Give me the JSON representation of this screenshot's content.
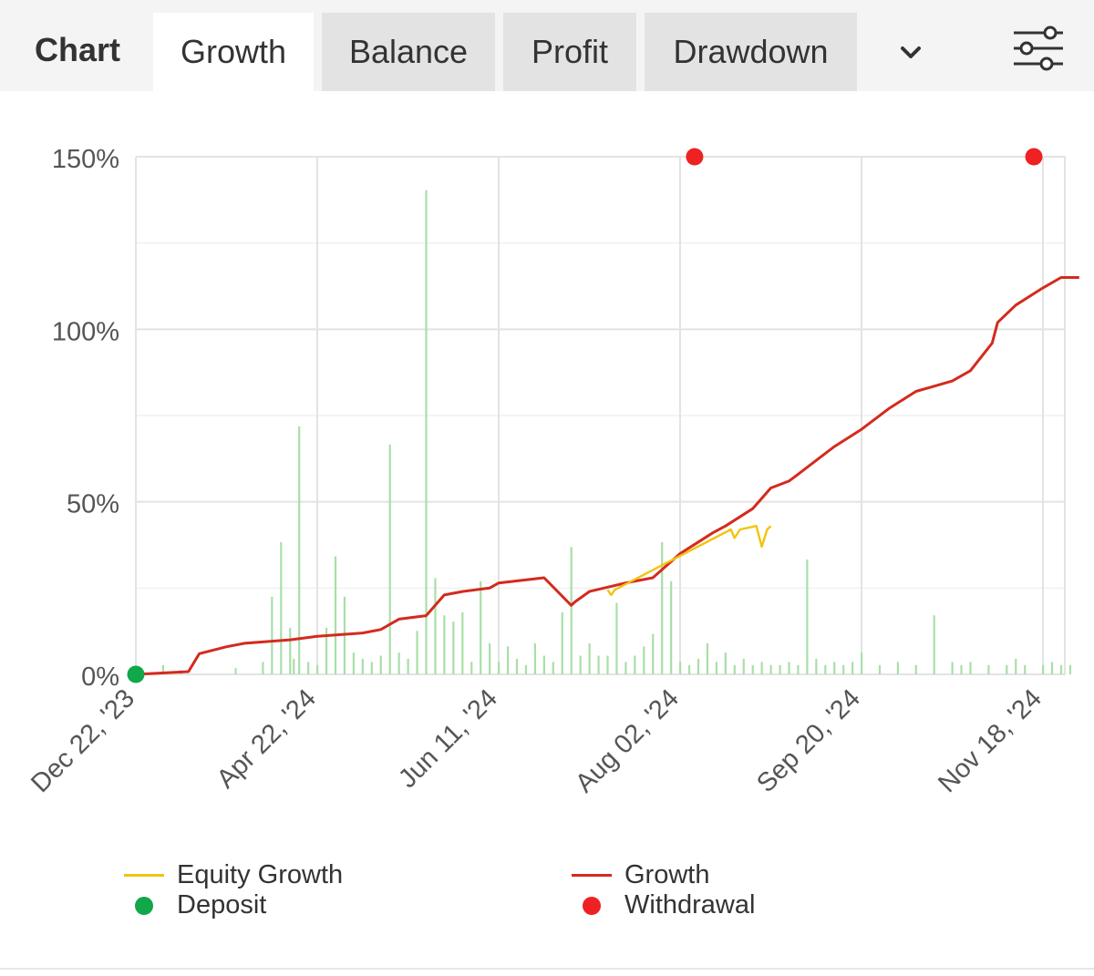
{
  "header": {
    "title": "Chart",
    "tabs": [
      {
        "label": "Growth",
        "active": true
      },
      {
        "label": "Balance",
        "active": false
      },
      {
        "label": "Profit",
        "active": false
      },
      {
        "label": "Drawdown",
        "active": false
      }
    ],
    "more_icon": "chevron-down-icon",
    "settings_icon": "sliders-icon"
  },
  "colors": {
    "growth": "#d42a1e",
    "equity": "#f1c40f",
    "deposit": "#10a84a",
    "withdrawal": "#ee2222",
    "volume": "#a8dfa8",
    "grid": "#e6e6e6"
  },
  "chart_data": {
    "type": "line",
    "ylim": [
      0,
      150
    ],
    "y_ticks": [
      "0%",
      "50%",
      "100%",
      "150%"
    ],
    "x_ticks": [
      "Dec 22, '23",
      "Apr 22, '24",
      "Jun 11, '24",
      "Aug 02, '24",
      "Sep 20, '24",
      "Nov 18, '24"
    ],
    "grid": true,
    "legend_position": "bottom",
    "series": [
      {
        "name": "Growth",
        "x": [
          0.0,
          0.29,
          0.35,
          0.5,
          0.55,
          0.6,
          0.85,
          1.0,
          1.25,
          1.35,
          1.45,
          1.6,
          1.7,
          1.8,
          1.95,
          2.0,
          2.25,
          2.4,
          2.42,
          2.5,
          2.7,
          2.85,
          3.0,
          3.12,
          3.18,
          3.25,
          3.4,
          3.5,
          3.6,
          3.65,
          3.75,
          3.85,
          4.0,
          4.15,
          4.3,
          4.5,
          4.6,
          4.72,
          4.75,
          4.85,
          5.0,
          5.1,
          5.2
        ],
        "y": [
          0,
          0.8,
          6,
          8,
          8.5,
          9,
          10,
          11,
          12,
          13,
          16,
          17,
          23,
          24,
          25,
          26.5,
          28,
          20,
          21,
          24,
          26.5,
          28,
          35,
          39,
          41,
          43,
          48,
          54,
          56,
          58,
          62,
          66,
          71,
          77,
          82,
          85,
          88,
          96,
          102,
          107,
          112,
          115,
          115
        ]
      },
      {
        "name": "Equity Growth",
        "x": [
          2.6,
          2.62,
          2.64,
          3.28,
          3.3,
          3.33,
          3.42,
          3.45,
          3.48,
          3.5
        ],
        "y": [
          24.5,
          23,
          24.5,
          42,
          39.5,
          42,
          43,
          37,
          42,
          43
        ]
      }
    ],
    "markers": [
      {
        "name": "Deposit",
        "x": 0.0,
        "y": 0
      },
      {
        "name": "Withdrawal",
        "x": 3.08,
        "y": 150
      },
      {
        "name": "Withdrawal",
        "x": 4.95,
        "y": 150
      }
    ],
    "volume_bars": {
      "x": [
        0.15,
        0.25,
        0.55,
        0.7,
        0.75,
        0.8,
        0.85,
        0.87,
        0.9,
        0.95,
        1.0,
        1.05,
        1.1,
        1.15,
        1.2,
        1.25,
        1.3,
        1.35,
        1.4,
        1.45,
        1.5,
        1.55,
        1.6,
        1.65,
        1.7,
        1.75,
        1.8,
        1.85,
        1.9,
        1.95,
        2.0,
        2.05,
        2.1,
        2.15,
        2.2,
        2.25,
        2.3,
        2.35,
        2.4,
        2.45,
        2.5,
        2.55,
        2.6,
        2.65,
        2.7,
        2.75,
        2.8,
        2.85,
        2.9,
        2.95,
        3.0,
        3.05,
        3.1,
        3.15,
        3.2,
        3.25,
        3.3,
        3.35,
        3.4,
        3.45,
        3.5,
        3.55,
        3.6,
        3.65,
        3.7,
        3.75,
        3.8,
        3.85,
        3.9,
        3.95,
        4.0,
        4.1,
        4.2,
        4.3,
        4.4,
        4.5,
        4.55,
        4.6,
        4.7,
        4.8,
        4.85,
        4.9,
        5.0,
        5.05,
        5.1,
        5.15
      ],
      "y": [
        2.7,
        1.2,
        1.8,
        3.6,
        22.5,
        38.3,
        13.5,
        4.5,
        71.9,
        3.6,
        2.7,
        13.5,
        34.2,
        22.5,
        6.3,
        4.5,
        3.6,
        5.4,
        66.6,
        6.3,
        4.5,
        12.6,
        140.3,
        27.9,
        17.1,
        15.3,
        18,
        3.6,
        27,
        9,
        3.6,
        8.1,
        4.5,
        2.7,
        9,
        5.4,
        3.6,
        18,
        36.9,
        5.4,
        9,
        5.4,
        5.4,
        20.7,
        3.6,
        5.4,
        8.1,
        11.7,
        38.3,
        27,
        3.6,
        2.7,
        4.5,
        9,
        3.6,
        6.3,
        2.7,
        4.5,
        2.7,
        3.6,
        2.7,
        2.7,
        3.6,
        2.7,
        33.3,
        4.5,
        2.7,
        3.6,
        2.7,
        3.6,
        6.3,
        2.7,
        3.6,
        2.7,
        17.1,
        3.6,
        2.7,
        3.6,
        2.7,
        2.7,
        4.5,
        2.7,
        2.7,
        3.6,
        2.7,
        2.7
      ]
    }
  },
  "legend": [
    {
      "label": "Equity Growth",
      "kind": "line",
      "color": "#f1c40f"
    },
    {
      "label": "Growth",
      "kind": "line",
      "color": "#d42a1e"
    },
    {
      "label": "Deposit",
      "kind": "dot",
      "color": "#10a84a"
    },
    {
      "label": "Withdrawal",
      "kind": "dot",
      "color": "#ee2222"
    }
  ]
}
